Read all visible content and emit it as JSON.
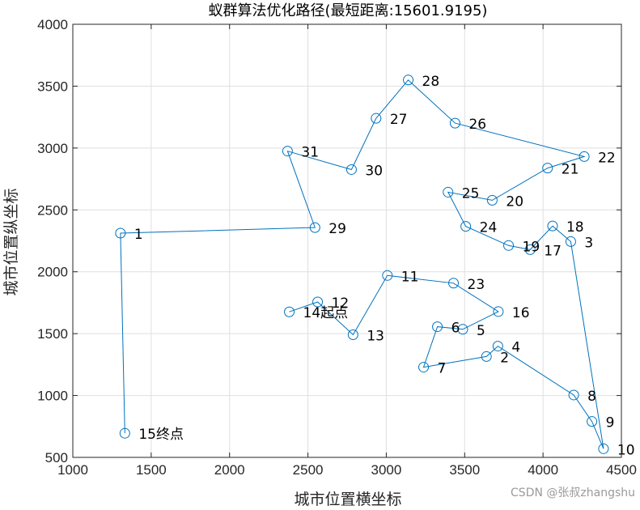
{
  "chart_data": {
    "type": "line",
    "title": "蚁群算法优化路径(最短距离:15601.9195)",
    "xlabel": "城市位置横坐标",
    "ylabel": "城市位置纵坐标",
    "xlim": [
      1000,
      4500
    ],
    "ylim": [
      500,
      4000
    ],
    "xticks": [
      1000,
      1500,
      2000,
      2500,
      3000,
      3500,
      4000,
      4500
    ],
    "yticks": [
      500,
      1000,
      1500,
      2000,
      2500,
      3000,
      3500,
      4000
    ],
    "grid": true,
    "line_color": "#0072BD",
    "marker": "circle",
    "cities": [
      {
        "label": "1",
        "x": 1304,
        "y": 2312
      },
      {
        "label": "2",
        "x": 3639,
        "y": 1315
      },
      {
        "label": "3",
        "x": 4177,
        "y": 2244
      },
      {
        "label": "4",
        "x": 3712,
        "y": 1399
      },
      {
        "label": "5",
        "x": 3488,
        "y": 1535
      },
      {
        "label": "6",
        "x": 3326,
        "y": 1556
      },
      {
        "label": "7",
        "x": 3238,
        "y": 1229
      },
      {
        "label": "8",
        "x": 4196,
        "y": 1004
      },
      {
        "label": "9",
        "x": 4312,
        "y": 790
      },
      {
        "label": "10",
        "x": 4386,
        "y": 570
      },
      {
        "label": "11",
        "x": 3007,
        "y": 1970
      },
      {
        "label": "12",
        "x": 2562,
        "y": 1756
      },
      {
        "label": "13",
        "x": 2788,
        "y": 1491
      },
      {
        "label": "14起点",
        "x": 2381,
        "y": 1676
      },
      {
        "label": "15终点",
        "x": 1332,
        "y": 695
      },
      {
        "label": "16",
        "x": 3715,
        "y": 1678
      },
      {
        "label": "17",
        "x": 3918,
        "y": 2179
      },
      {
        "label": "18",
        "x": 4061,
        "y": 2370
      },
      {
        "label": "19",
        "x": 3780,
        "y": 2212
      },
      {
        "label": "20",
        "x": 3676,
        "y": 2578
      },
      {
        "label": "21",
        "x": 4029,
        "y": 2838
      },
      {
        "label": "22",
        "x": 4263,
        "y": 2931
      },
      {
        "label": "23",
        "x": 3429,
        "y": 1908
      },
      {
        "label": "24",
        "x": 3507,
        "y": 2367
      },
      {
        "label": "25",
        "x": 3394,
        "y": 2643
      },
      {
        "label": "26",
        "x": 3439,
        "y": 3201
      },
      {
        "label": "27",
        "x": 2935,
        "y": 3240
      },
      {
        "label": "28",
        "x": 3140,
        "y": 3550
      },
      {
        "label": "29",
        "x": 2545,
        "y": 2357
      },
      {
        "label": "30",
        "x": 2778,
        "y": 2826
      },
      {
        "label": "31",
        "x": 2370,
        "y": 2975
      }
    ],
    "route": [
      14,
      12,
      13,
      11,
      23,
      16,
      5,
      6,
      7,
      2,
      4,
      8,
      9,
      10,
      3,
      18,
      17,
      19,
      24,
      25,
      20,
      21,
      22,
      26,
      28,
      27,
      30,
      31,
      29,
      1,
      15
    ]
  },
  "watermark": "CSDN @张叔zhangshu"
}
